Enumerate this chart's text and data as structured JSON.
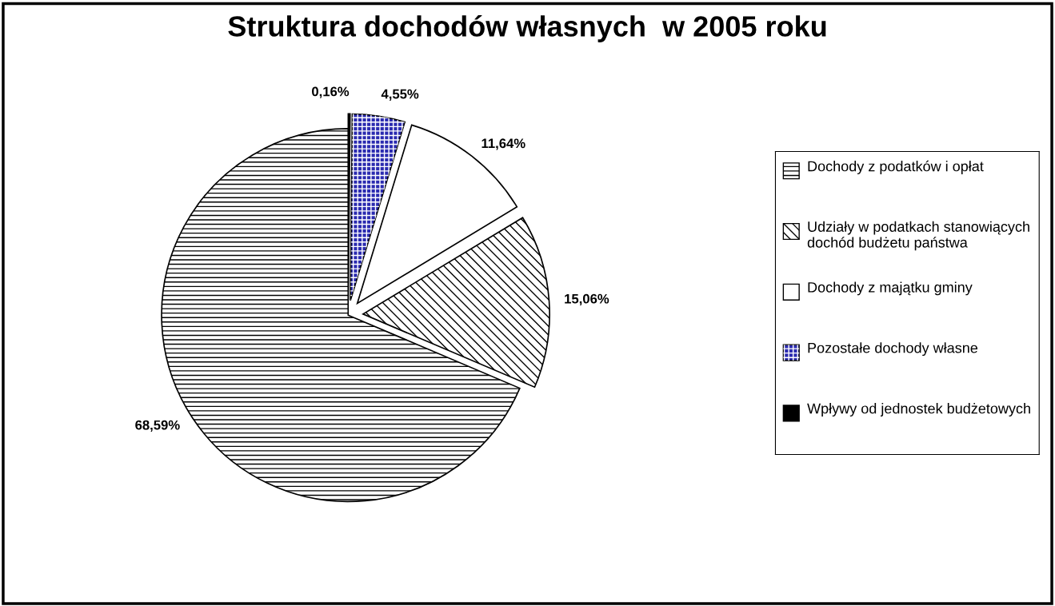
{
  "chart_data": {
    "type": "pie",
    "title": "Struktura dochodów własnych  w 2005 roku",
    "categories": [
      "Dochody z podatków i opłat",
      "Udziały w podatkach stanowiących dochód budżetu państwa",
      "Dochody z majątku gminy",
      "Pozostałe dochody własne",
      "Wpływy od jednostek budżetowych"
    ],
    "values": [
      68.59,
      15.06,
      11.64,
      4.55,
      0.16
    ],
    "value_labels": [
      "68,59%",
      "15,06%",
      "11,64%",
      "4,55%",
      "0,16%"
    ],
    "colors": [
      "#ffffff",
      "#ffffff",
      "#ffffff",
      "#2a2ab0",
      "#000000"
    ],
    "legend": "right"
  }
}
